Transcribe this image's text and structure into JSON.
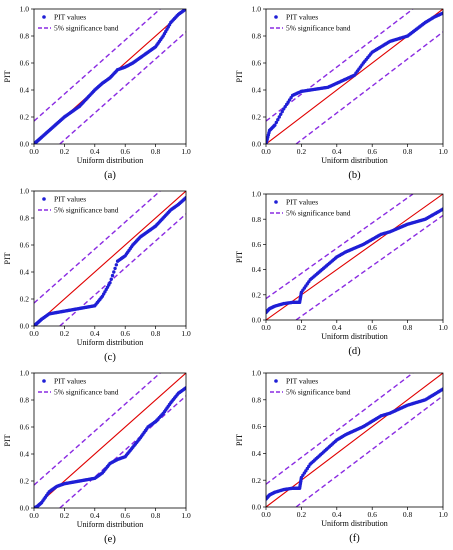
{
  "chart_data": [
    {
      "panel": "(a)",
      "type": "scatter",
      "xlabel": "Uniform distribution",
      "ylabel": "PIT",
      "xlim": [
        0,
        1
      ],
      "ylim": [
        0,
        1
      ],
      "xticks": [
        "0.0",
        "0.2",
        "0.4",
        "0.6",
        "0.8",
        "1.0"
      ],
      "yticks": [
        "0.0",
        "0.2",
        "0.4",
        "0.6",
        "0.8",
        "1.0"
      ],
      "legend": {
        "position": "upper-left",
        "entries": [
          "PIT values",
          "5% significance band"
        ]
      },
      "series": [
        {
          "name": "PIT values",
          "color": "#1f1fd6",
          "x": [
            0,
            0.02,
            0.05,
            0.1,
            0.15,
            0.2,
            0.25,
            0.3,
            0.35,
            0.4,
            0.45,
            0.5,
            0.55,
            0.6,
            0.65,
            0.7,
            0.75,
            0.8,
            0.85,
            0.9,
            0.95,
            1.0
          ],
          "y": [
            0.0,
            0.02,
            0.05,
            0.1,
            0.15,
            0.2,
            0.24,
            0.28,
            0.34,
            0.4,
            0.45,
            0.49,
            0.55,
            0.57,
            0.6,
            0.64,
            0.68,
            0.72,
            0.8,
            0.9,
            0.96,
            1.0
          ]
        }
      ],
      "reference_line": {
        "color": "#e00000"
      },
      "band": {
        "color": "#8a2be2",
        "offset": 0.17
      }
    },
    {
      "panel": "(b)",
      "type": "scatter",
      "xlabel": "Uniform distribution",
      "ylabel": "PIT",
      "xlim": [
        0,
        1
      ],
      "ylim": [
        0,
        1
      ],
      "xticks": [
        "0.0",
        "0.2",
        "0.4",
        "0.6",
        "0.8",
        "1.0"
      ],
      "yticks": [
        "0.0",
        "0.2",
        "0.4",
        "0.6",
        "0.8",
        "1.0"
      ],
      "legend": {
        "position": "upper-left",
        "entries": [
          "PIT values",
          "5% significance band"
        ]
      },
      "series": [
        {
          "name": "PIT values",
          "color": "#1f1fd6",
          "x": [
            0,
            0.02,
            0.05,
            0.1,
            0.15,
            0.2,
            0.25,
            0.3,
            0.35,
            0.4,
            0.45,
            0.5,
            0.55,
            0.6,
            0.65,
            0.7,
            0.75,
            0.8,
            0.85,
            0.9,
            0.95,
            1.0
          ],
          "y": [
            0.0,
            0.1,
            0.14,
            0.26,
            0.36,
            0.39,
            0.4,
            0.41,
            0.42,
            0.45,
            0.48,
            0.51,
            0.6,
            0.68,
            0.72,
            0.76,
            0.78,
            0.8,
            0.85,
            0.9,
            0.94,
            0.97
          ]
        }
      ],
      "reference_line": {
        "color": "#e00000"
      },
      "band": {
        "color": "#8a2be2",
        "offset": 0.17
      }
    },
    {
      "panel": "(c)",
      "type": "scatter",
      "xlabel": "Uniform distribution",
      "ylabel": "PIT",
      "xlim": [
        0,
        1
      ],
      "ylim": [
        0,
        1
      ],
      "xticks": [
        "0.0",
        "0.2",
        "0.4",
        "0.6",
        "0.8",
        "1.0"
      ],
      "yticks": [
        "0.0",
        "0.2",
        "0.4",
        "0.6",
        "0.8",
        "1.0"
      ],
      "legend": {
        "position": "upper-left",
        "entries": [
          "PIT values",
          "5% significance band"
        ]
      },
      "series": [
        {
          "name": "PIT values",
          "color": "#1f1fd6",
          "x": [
            0,
            0.02,
            0.05,
            0.1,
            0.15,
            0.2,
            0.25,
            0.3,
            0.35,
            0.4,
            0.45,
            0.5,
            0.55,
            0.6,
            0.65,
            0.7,
            0.75,
            0.8,
            0.85,
            0.9,
            0.95,
            1.0
          ],
          "y": [
            0.0,
            0.02,
            0.05,
            0.09,
            0.1,
            0.11,
            0.12,
            0.13,
            0.14,
            0.15,
            0.22,
            0.32,
            0.48,
            0.52,
            0.6,
            0.66,
            0.7,
            0.74,
            0.8,
            0.86,
            0.9,
            0.95
          ]
        }
      ],
      "reference_line": {
        "color": "#e00000"
      },
      "band": {
        "color": "#8a2be2",
        "offset": 0.17
      }
    },
    {
      "panel": "(d)",
      "type": "scatter",
      "xlabel": "Uniform distribution",
      "ylabel": "PIT",
      "xlim": [
        0,
        1
      ],
      "ylim": [
        0,
        1
      ],
      "xticks": [
        "0.0",
        "0.2",
        "0.4",
        "0.6",
        "0.8",
        "1.0"
      ],
      "yticks": [
        "0.0",
        "0.2",
        "0.4",
        "0.6",
        "0.8",
        "1.0"
      ],
      "legend": {
        "position": "upper-left",
        "entries": [
          "PIT values",
          "5% significance band"
        ]
      },
      "series": [
        {
          "name": "PIT values",
          "color": "#1f1fd6",
          "x": [
            0,
            0.02,
            0.05,
            0.1,
            0.15,
            0.19,
            0.2,
            0.25,
            0.3,
            0.35,
            0.4,
            0.45,
            0.5,
            0.55,
            0.6,
            0.65,
            0.7,
            0.75,
            0.8,
            0.85,
            0.9,
            0.95,
            1.0
          ],
          "y": [
            0.06,
            0.09,
            0.11,
            0.13,
            0.14,
            0.14,
            0.22,
            0.32,
            0.38,
            0.44,
            0.5,
            0.54,
            0.57,
            0.6,
            0.64,
            0.68,
            0.7,
            0.73,
            0.76,
            0.78,
            0.8,
            0.84,
            0.88
          ]
        }
      ],
      "reference_line": {
        "color": "#e00000"
      },
      "band": {
        "color": "#8a2be2",
        "offset": 0.17
      }
    },
    {
      "panel": "(e)",
      "type": "scatter",
      "xlabel": "Uniform distribution",
      "ylabel": "PIT",
      "xlim": [
        0,
        1
      ],
      "ylim": [
        0,
        1
      ],
      "xticks": [
        "0.0",
        "0.2",
        "0.4",
        "0.6",
        "0.8",
        "1.0"
      ],
      "yticks": [
        "0.0",
        "0.2",
        "0.4",
        "0.6",
        "0.8",
        "1.0"
      ],
      "legend": {
        "position": "upper-left",
        "entries": [
          "PIT values",
          "5% significance band"
        ]
      },
      "series": [
        {
          "name": "PIT values",
          "color": "#1f1fd6",
          "x": [
            0,
            0.02,
            0.05,
            0.1,
            0.15,
            0.2,
            0.25,
            0.3,
            0.35,
            0.4,
            0.45,
            0.5,
            0.55,
            0.6,
            0.65,
            0.7,
            0.75,
            0.8,
            0.85,
            0.9,
            0.95,
            1.0
          ],
          "y": [
            0.0,
            0.01,
            0.04,
            0.12,
            0.16,
            0.18,
            0.19,
            0.2,
            0.21,
            0.22,
            0.26,
            0.33,
            0.36,
            0.38,
            0.45,
            0.52,
            0.6,
            0.64,
            0.7,
            0.78,
            0.85,
            0.89
          ]
        }
      ],
      "reference_line": {
        "color": "#e00000"
      },
      "band": {
        "color": "#8a2be2",
        "offset": 0.17
      }
    },
    {
      "panel": "(f)",
      "type": "scatter",
      "xlabel": "Uniform distribution",
      "ylabel": "PIT",
      "xlim": [
        0,
        1
      ],
      "ylim": [
        0,
        1
      ],
      "xticks": [
        "0.0",
        "0.2",
        "0.4",
        "0.6",
        "0.8",
        "1.0"
      ],
      "yticks": [
        "0.0",
        "0.2",
        "0.4",
        "0.6",
        "0.8",
        "1.0"
      ],
      "legend": {
        "position": "upper-left",
        "entries": [
          "PIT values",
          "5% significance band"
        ]
      },
      "series": [
        {
          "name": "PIT values",
          "color": "#1f1fd6",
          "x": [
            0,
            0.02,
            0.05,
            0.1,
            0.15,
            0.19,
            0.2,
            0.25,
            0.3,
            0.35,
            0.4,
            0.45,
            0.5,
            0.55,
            0.6,
            0.65,
            0.7,
            0.75,
            0.8,
            0.85,
            0.9,
            0.95,
            1.0
          ],
          "y": [
            0.06,
            0.09,
            0.11,
            0.13,
            0.14,
            0.14,
            0.22,
            0.32,
            0.38,
            0.44,
            0.5,
            0.54,
            0.57,
            0.6,
            0.64,
            0.68,
            0.7,
            0.73,
            0.76,
            0.78,
            0.8,
            0.84,
            0.88
          ]
        }
      ],
      "reference_line": {
        "color": "#e00000"
      },
      "band": {
        "color": "#8a2be2",
        "offset": 0.17
      }
    }
  ]
}
